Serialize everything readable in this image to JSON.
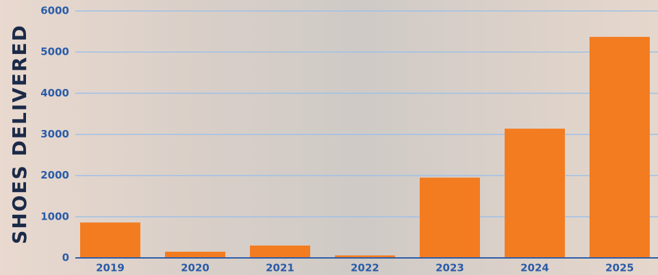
{
  "chart_data": {
    "type": "bar",
    "y_label": "SHOES DELIVERED",
    "categories": [
      "2019",
      "2020",
      "2021",
      "2022",
      "2023",
      "2024",
      "2025"
    ],
    "values": [
      860,
      150,
      300,
      60,
      1950,
      3140,
      5370
    ],
    "color": "#f47c20",
    "ylim": [
      0,
      6000
    ],
    "yticks": [
      0,
      1000,
      2000,
      3000,
      4000,
      5000,
      6000
    ],
    "grid": true
  }
}
